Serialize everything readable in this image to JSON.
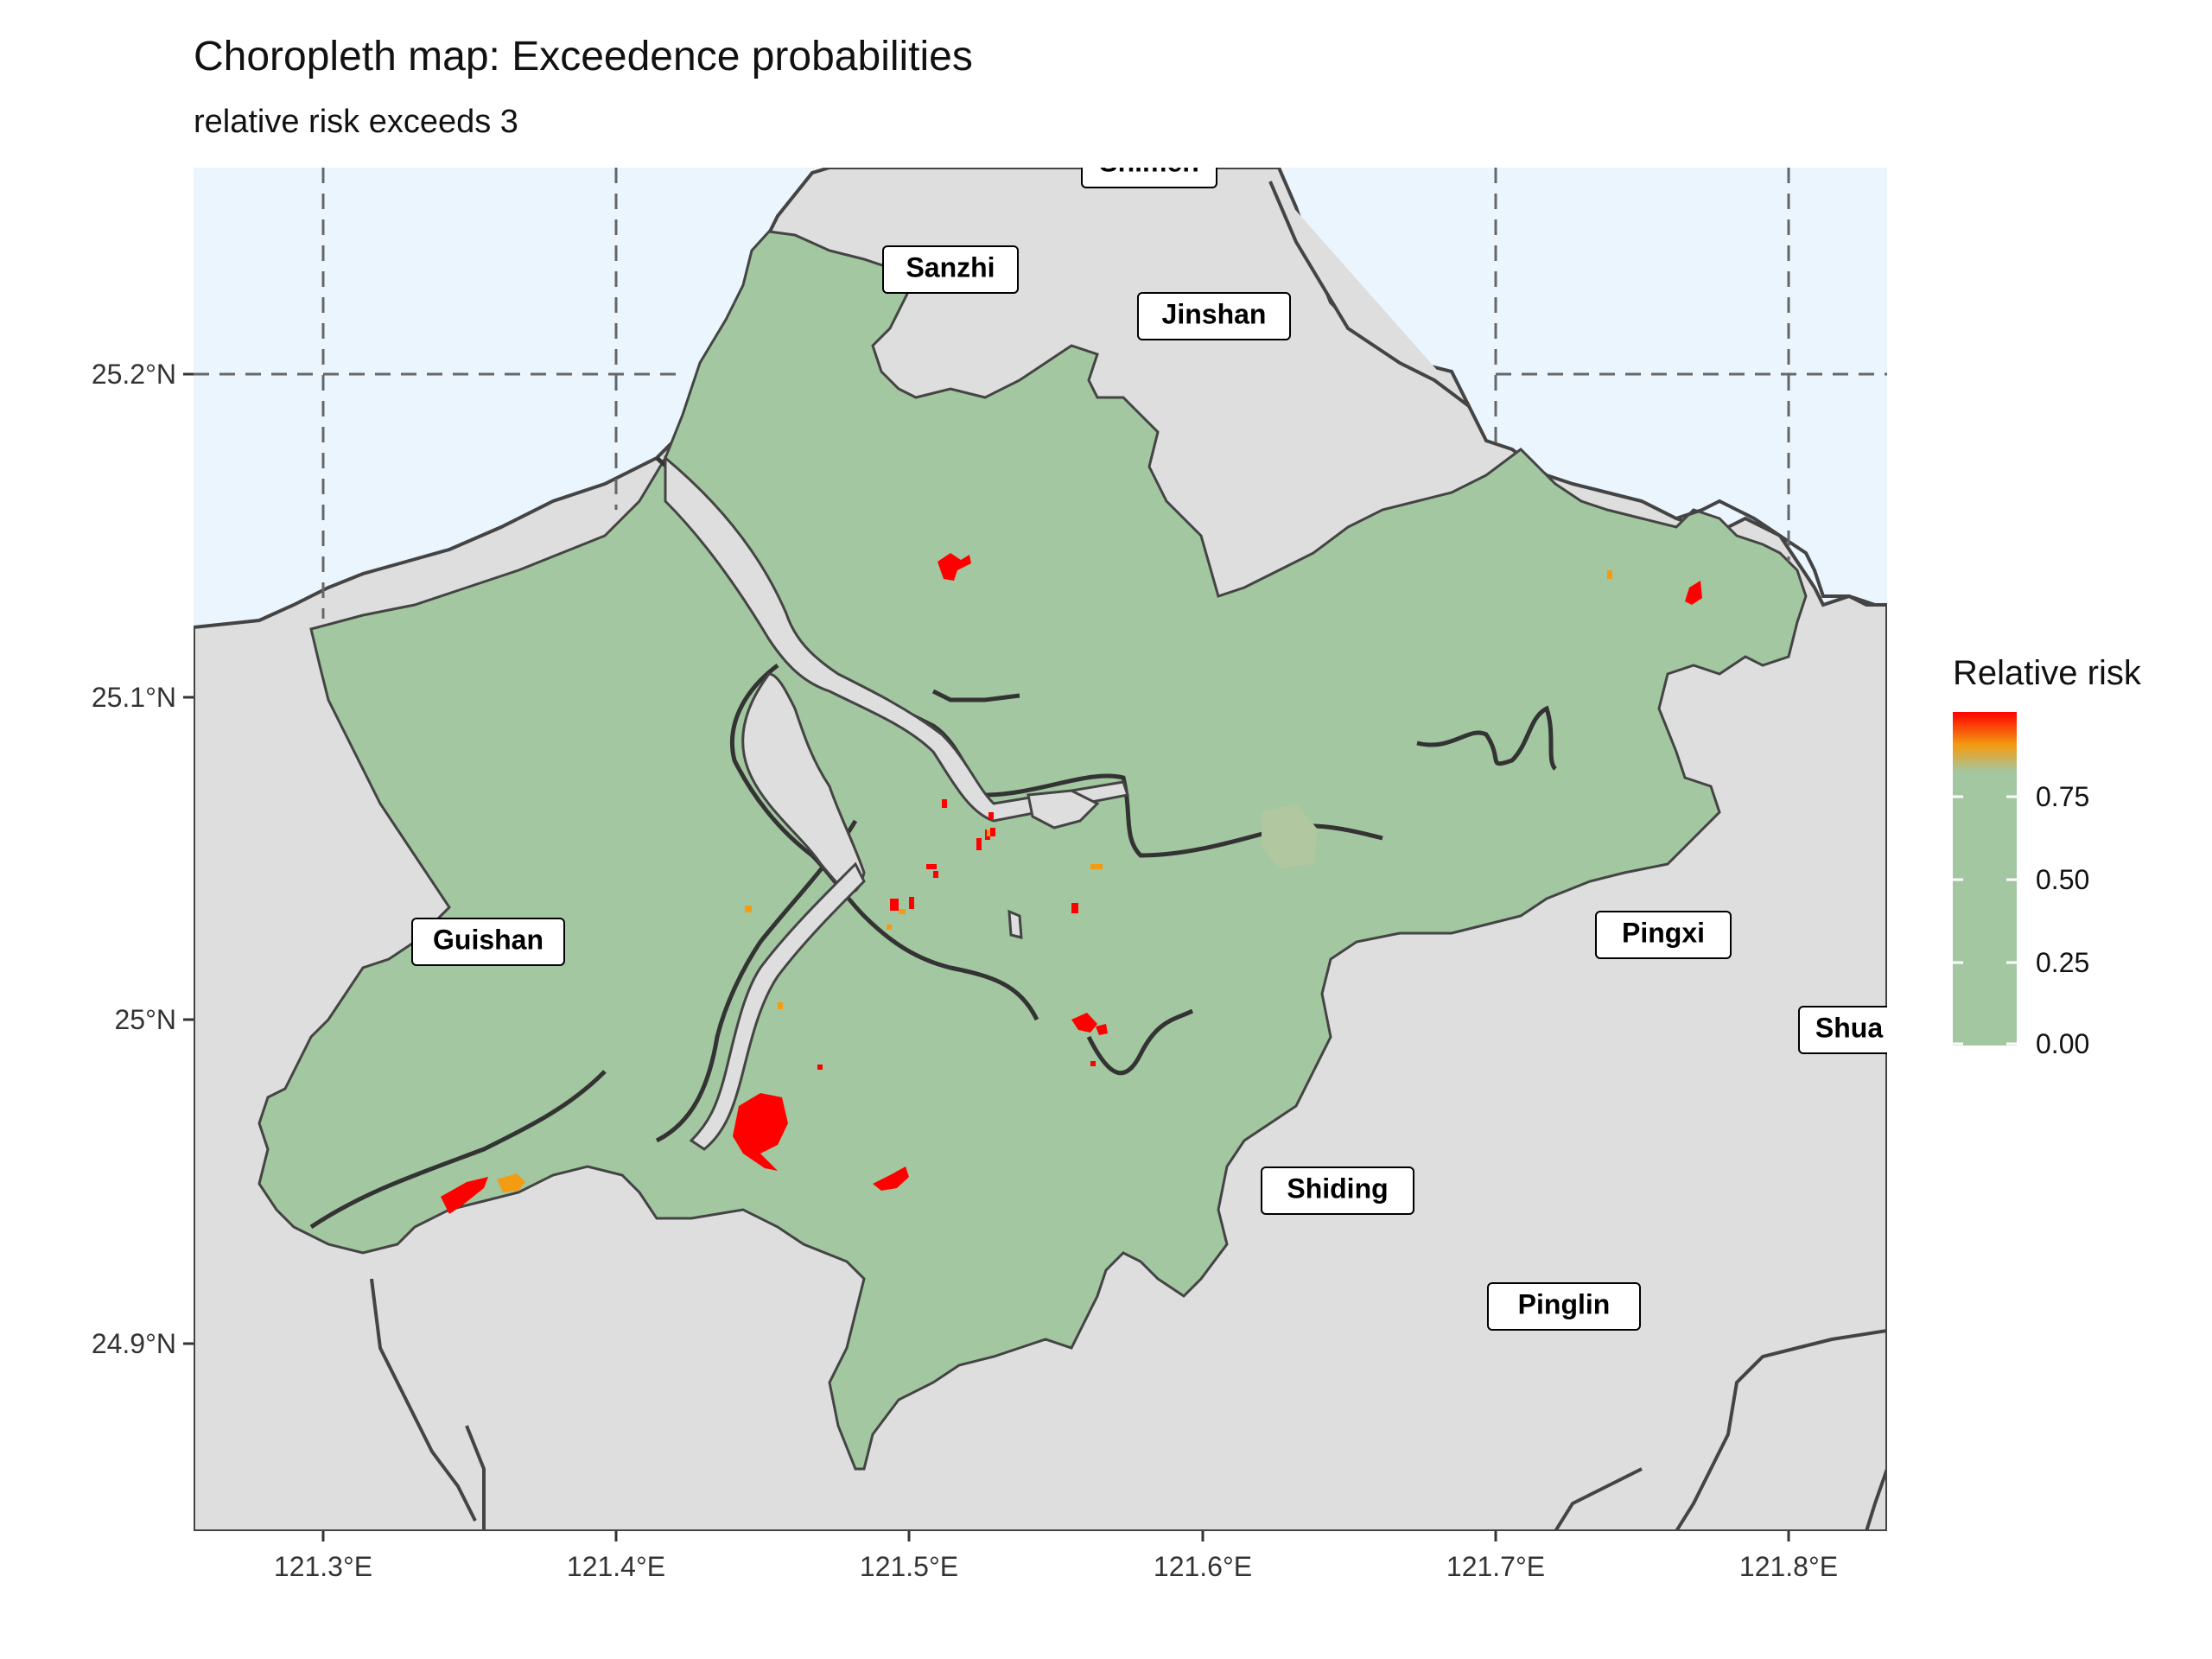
{
  "title": "Choropleth map: Exceedence probabilities",
  "subtitle": "relative risk exceeds 3",
  "axes": {
    "x_ticks": [
      "121.3°E",
      "121.4°E",
      "121.5°E",
      "121.6°E",
      "121.7°E",
      "121.8°E"
    ],
    "y_ticks": [
      "25.2°N",
      "25.1°N",
      "25°N",
      "24.9°N"
    ]
  },
  "places": [
    {
      "name": "Shimen"
    },
    {
      "name": "Sanzhi"
    },
    {
      "name": "Jinshan"
    },
    {
      "name": "Guishan"
    },
    {
      "name": "Pingxi"
    },
    {
      "name": "Shua"
    },
    {
      "name": "Shiding"
    },
    {
      "name": "Pinglin"
    }
  ],
  "legend": {
    "title": "Relative risk",
    "ticks": [
      "0.75",
      "0.50",
      "0.25",
      "0.00"
    ],
    "colors": {
      "low": "#a3c7a0",
      "mid": "#f39c12",
      "high": "#ff0000"
    }
  },
  "colors": {
    "sea": "#eaf5fe",
    "land": "#dedede",
    "region": "#a3c7a0",
    "border": "#444444",
    "grid": "#666666"
  }
}
